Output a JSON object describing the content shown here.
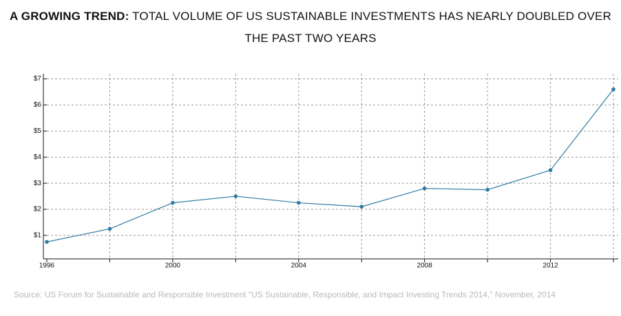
{
  "chart_data": {
    "type": "line",
    "title_bold": "A GROWING TREND:",
    "title": "TOTAL VOLUME OF US SUSTAINABLE INVESTMENTS HAS NEARLY DOUBLED OVER THE PAST TWO YEARS",
    "source": "Source: US Forum for Sustainable and Responsible Investment \"US Sustainable, Responsible, and Impact Investing Trends 2014,\" November, 2014",
    "x": [
      1996,
      1998,
      2000,
      2002,
      2004,
      2006,
      2008,
      2010,
      2012,
      2014
    ],
    "series": [
      {
        "color": "#2f7aa3",
        "values": [
          0.75,
          1.25,
          2.25,
          2.5,
          2.25,
          2.1,
          2.8,
          2.75,
          3.5,
          6.6
        ]
      }
    ],
    "xlim": [
      1996,
      2014
    ],
    "xticks": [
      1996,
      2000,
      2004,
      2008,
      2012
    ],
    "xticks_minor": [
      1998,
      2002,
      2006,
      2010,
      2014
    ],
    "ylim": [
      0.1,
      7.2
    ],
    "yticks": [
      {
        "value": 1,
        "label": "$1"
      },
      {
        "value": 2,
        "label": "$2"
      },
      {
        "value": 3,
        "label": "$3"
      },
      {
        "value": 4,
        "label": "$4"
      },
      {
        "value": 5,
        "label": "$5"
      },
      {
        "value": 6,
        "label": "$6"
      },
      {
        "value": 7,
        "label": "$7"
      }
    ],
    "grid": true
  }
}
